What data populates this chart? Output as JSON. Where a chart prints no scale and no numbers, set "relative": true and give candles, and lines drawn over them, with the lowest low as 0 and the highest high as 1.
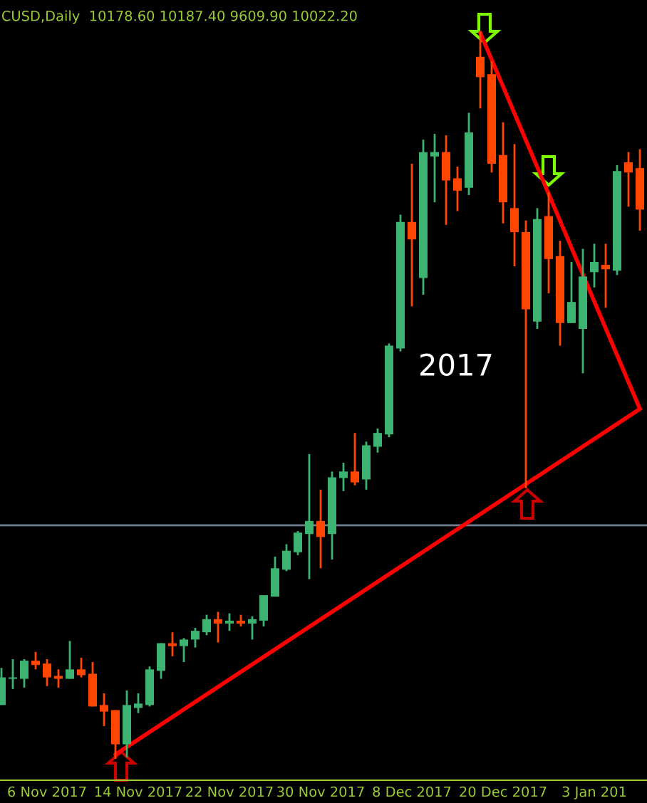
{
  "chart_data": {
    "type": "candlestick",
    "title": "CUSD,Daily  10178.60 10187.40 9609.90 10022.20",
    "relative": true,
    "categories": [
      null,
      null,
      null,
      null,
      "6 Nov 2017",
      null,
      null,
      null,
      null,
      null,
      null,
      null,
      "14 Nov 2017",
      null,
      null,
      null,
      null,
      null,
      null,
      null,
      "22 Nov 2017",
      null,
      null,
      null,
      null,
      null,
      null,
      null,
      "30 Nov 2017",
      null,
      null,
      null,
      null,
      null,
      null,
      null,
      "8 Dec 2017",
      null,
      null,
      null,
      null,
      null,
      null,
      null,
      "20 Dec 2017",
      null,
      null,
      null,
      null,
      null,
      null,
      null,
      "3 Jan 201",
      null,
      null,
      null,
      null
    ],
    "ohlc": [
      [
        0.074,
        0.125,
        0.074,
        0.112
      ],
      [
        0.11,
        0.137,
        0.096,
        0.112
      ],
      [
        0.11,
        0.137,
        0.098,
        0.135
      ],
      [
        0.135,
        0.147,
        0.123,
        0.129
      ],
      [
        0.131,
        0.137,
        0.1,
        0.112
      ],
      [
        0.114,
        0.123,
        0.098,
        0.11
      ],
      [
        0.11,
        0.162,
        0.11,
        0.123
      ],
      [
        0.123,
        0.139,
        0.112,
        0.115
      ],
      [
        0.117,
        0.133,
        0.072,
        0.072
      ],
      [
        0.074,
        0.09,
        0.045,
        0.065
      ],
      [
        0.067,
        0.067,
        0.0,
        0.02
      ],
      [
        0.02,
        0.094,
        0.002,
        0.074
      ],
      [
        0.07,
        0.09,
        0.063,
        0.076
      ],
      [
        0.074,
        0.127,
        0.072,
        0.123
      ],
      [
        0.121,
        0.159,
        0.11,
        0.159
      ],
      [
        0.159,
        0.174,
        0.141,
        0.155
      ],
      [
        0.155,
        0.166,
        0.133,
        0.164
      ],
      [
        0.164,
        0.18,
        0.153,
        0.176
      ],
      [
        0.174,
        0.198,
        0.17,
        0.192
      ],
      [
        0.192,
        0.202,
        0.16,
        0.186
      ],
      [
        0.186,
        0.2,
        0.176,
        0.19
      ],
      [
        0.19,
        0.198,
        0.182,
        0.186
      ],
      [
        0.186,
        0.196,
        0.164,
        0.192
      ],
      [
        0.19,
        0.225,
        0.182,
        0.225
      ],
      [
        0.223,
        0.278,
        0.223,
        0.262
      ],
      [
        0.26,
        0.295,
        0.258,
        0.286
      ],
      [
        0.284,
        0.313,
        0.28,
        0.311
      ],
      [
        0.309,
        0.419,
        0.247,
        0.327
      ],
      [
        0.327,
        0.37,
        0.262,
        0.305
      ],
      [
        0.309,
        0.395,
        0.274,
        0.387
      ],
      [
        0.386,
        0.407,
        0.368,
        0.395
      ],
      [
        0.395,
        0.448,
        0.376,
        0.38
      ],
      [
        0.384,
        0.436,
        0.37,
        0.431
      ],
      [
        0.429,
        0.454,
        0.421,
        0.448
      ],
      [
        0.446,
        0.571,
        0.442,
        0.568
      ],
      [
        0.564,
        0.748,
        0.56,
        0.738
      ],
      [
        0.738,
        0.818,
        0.622,
        0.714
      ],
      [
        0.661,
        0.851,
        0.638,
        0.834
      ],
      [
        0.828,
        0.859,
        0.765,
        0.834
      ],
      [
        0.834,
        0.857,
        0.734,
        0.795
      ],
      [
        0.798,
        0.814,
        0.753,
        0.781
      ],
      [
        0.785,
        0.888,
        0.775,
        0.861
      ],
      [
        0.965,
        1.0,
        0.894,
        0.937
      ],
      [
        0.941,
        0.959,
        0.806,
        0.818
      ],
      [
        0.83,
        0.875,
        0.736,
        0.765
      ],
      [
        0.757,
        0.845,
        0.677,
        0.724
      ],
      [
        0.724,
        0.74,
        0.372,
        0.618
      ],
      [
        0.601,
        0.757,
        0.591,
        0.742
      ],
      [
        0.746,
        0.779,
        0.64,
        0.687
      ],
      [
        0.691,
        0.712,
        0.568,
        0.599
      ],
      [
        0.599,
        0.683,
        0.599,
        0.628
      ],
      [
        0.591,
        0.701,
        0.53,
        0.663
      ],
      [
        0.669,
        0.708,
        0.648,
        0.683
      ],
      [
        0.679,
        0.708,
        0.62,
        0.673
      ],
      [
        0.671,
        0.816,
        0.665,
        0.808
      ],
      [
        0.82,
        0.834,
        0.759,
        0.806
      ],
      [
        0.812,
        0.838,
        0.726,
        0.755
      ]
    ],
    "colors": [
      "#3cb371",
      "#3cb371",
      "#3cb371",
      "#ff4500",
      "#ff4500",
      "#ff4500",
      "#3cb371",
      "#ff4500",
      "#ff4500",
      "#ff4500",
      "#ff4500",
      "#3cb371",
      "#3cb371",
      "#3cb371",
      "#3cb371",
      "#ff4500",
      "#3cb371",
      "#3cb371",
      "#3cb371",
      "#ff4500",
      "#3cb371",
      "#ff4500",
      "#3cb371",
      "#3cb371",
      "#3cb371",
      "#3cb371",
      "#3cb371",
      "#3cb371",
      "#ff4500",
      "#3cb371",
      "#3cb371",
      "#ff4500",
      "#3cb371",
      "#3cb371",
      "#3cb371",
      "#3cb371",
      "#ff4500",
      "#3cb371",
      "#3cb371",
      "#ff4500",
      "#ff4500",
      "#3cb371",
      "#ff4500",
      "#ff4500",
      "#ff4500",
      "#ff4500",
      "#ff4500",
      "#3cb371",
      "#ff4500",
      "#ff4500",
      "#3cb371",
      "#3cb371",
      "#3cb371",
      "#ff4500",
      "#3cb371",
      "#ff4500",
      "#ff4500"
    ],
    "series": [
      {
        "type": "line",
        "color": "#ff0000",
        "values": [
          null,
          null,
          null,
          null,
          null,
          null,
          null,
          null,
          null,
          null,
          0.006,
          null,
          null,
          null,
          null,
          null,
          null,
          null,
          null,
          null,
          null,
          null,
          null,
          null,
          null,
          null,
          null,
          null,
          null,
          null,
          null,
          null,
          null,
          null,
          null,
          null,
          null,
          null,
          null,
          null,
          null,
          null,
          null,
          null,
          null,
          null,
          null,
          null,
          null,
          null,
          null,
          null,
          null,
          null,
          null,
          null,
          0.481
        ]
      },
      {
        "type": "line",
        "color": "#ff0000",
        "values": [
          null,
          null,
          null,
          null,
          null,
          null,
          null,
          null,
          null,
          null,
          null,
          null,
          null,
          null,
          null,
          null,
          null,
          null,
          null,
          null,
          null,
          null,
          null,
          null,
          null,
          null,
          null,
          null,
          null,
          null,
          null,
          null,
          null,
          null,
          null,
          null,
          null,
          null,
          null,
          null,
          null,
          null,
          0.998,
          null,
          null,
          null,
          null,
          null,
          null,
          null,
          null,
          null,
          null,
          null,
          null,
          null,
          0.481
        ]
      }
    ],
    "ref_lines": [
      {
        "axis": "y",
        "value": 0.321,
        "color": "#708090"
      }
    ],
    "annotations": [
      "2017"
    ]
  }
}
